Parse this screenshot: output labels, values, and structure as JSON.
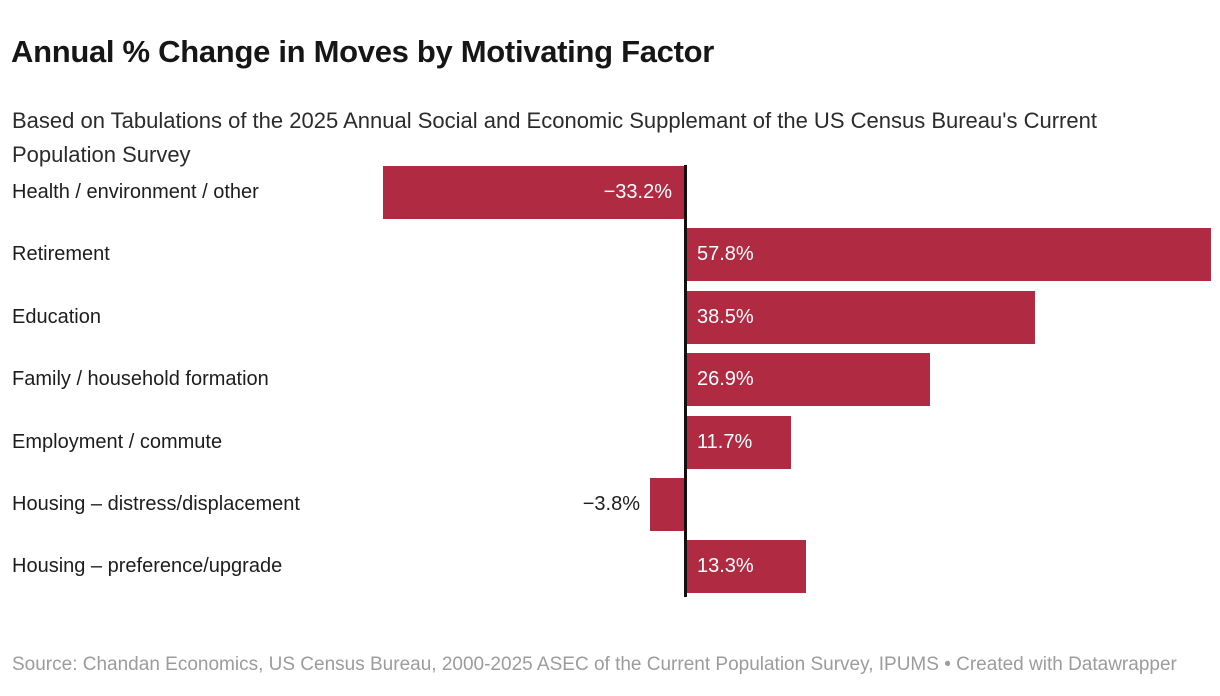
{
  "header": {
    "title": "Annual % Change in Moves by Motivating Factor",
    "subtitle": "Based on Tabulations of the 2025 Annual Social and Economic Supplemant of the US Census Bureau's Current Population Survey"
  },
  "chart_data": {
    "type": "bar",
    "orientation": "horizontal",
    "title": "Annual % Change in Moves by Motivating Factor",
    "xlabel": "",
    "ylabel": "",
    "categories": [
      "Health / environment / other",
      "Retirement",
      "Education",
      "Family / household formation",
      "Employment / commute",
      "Housing – distress/displacement",
      "Housing – preference/upgrade"
    ],
    "values": [
      -33.2,
      57.8,
      38.5,
      26.9,
      11.7,
      -3.8,
      13.3
    ],
    "value_labels": [
      "−33.2%",
      "57.8%",
      "38.5%",
      "26.9%",
      "11.7%",
      "−3.8%",
      "13.3%"
    ],
    "xlim": [
      -35,
      59
    ],
    "grid": false,
    "legend": false,
    "bar_color": "#b02b42",
    "axis_color": "#111111",
    "inside_label_color": "#ffffff",
    "outside_label_color": "#1d1d1d"
  },
  "footer": {
    "source_text": "Source: Chandan Economics, US Census Bureau, 2000-2025 ASEC of the Current Population Survey, IPUMS • Created with Datawrapper"
  }
}
